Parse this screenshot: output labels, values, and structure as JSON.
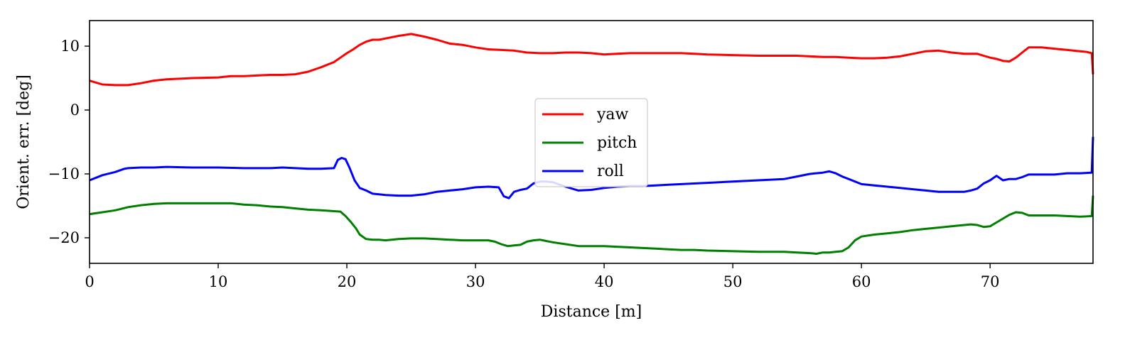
{
  "chart_data": {
    "type": "line",
    "title": "",
    "xlabel": "Distance [m]",
    "ylabel": "Orient. err. [deg]",
    "xlim": [
      0,
      78
    ],
    "ylim": [
      -24,
      14
    ],
    "xticks": [
      0,
      10,
      20,
      30,
      40,
      50,
      60,
      70
    ],
    "xtick_labels": [
      "0",
      "10",
      "20",
      "30",
      "40",
      "50",
      "60",
      "70"
    ],
    "yticks": [
      10,
      0,
      -10,
      -20
    ],
    "ytick_labels": [
      "10",
      "0",
      "−10",
      "−20"
    ],
    "grid": false,
    "legend": {
      "placement": "center"
    },
    "series": [
      {
        "name": "yaw",
        "color": "#ff0000",
        "x": [
          0,
          1,
          2,
          3,
          4,
          5,
          6,
          8,
          10,
          11,
          12,
          13,
          14,
          15,
          16,
          17,
          18,
          19,
          19.5,
          20,
          20.5,
          21,
          21.5,
          22,
          22.5,
          23,
          24,
          25,
          26,
          27,
          28,
          29,
          30,
          31,
          32,
          33,
          34,
          35,
          36,
          37,
          38,
          39,
          40,
          41,
          42,
          43,
          44,
          45,
          46,
          47,
          48,
          50,
          52,
          54,
          55,
          56,
          57,
          58,
          59,
          60,
          61,
          62,
          63,
          64,
          65,
          66,
          67,
          68,
          69,
          69.5,
          70,
          70.5,
          71,
          71.5,
          72,
          72.5,
          73,
          74,
          75,
          76,
          77,
          77.5,
          77.9,
          78
        ],
        "y": [
          4.6,
          4.0,
          3.9,
          3.9,
          4.2,
          4.6,
          4.8,
          5.0,
          5.1,
          5.3,
          5.3,
          5.4,
          5.5,
          5.5,
          5.6,
          6.0,
          6.7,
          7.5,
          8.2,
          8.9,
          9.5,
          10.2,
          10.7,
          11.0,
          11.0,
          11.2,
          11.6,
          11.9,
          11.5,
          11.0,
          10.4,
          10.2,
          9.8,
          9.5,
          9.4,
          9.3,
          9.0,
          8.9,
          8.9,
          9.0,
          9.0,
          8.9,
          8.7,
          8.8,
          8.9,
          8.9,
          8.9,
          8.9,
          8.9,
          8.8,
          8.7,
          8.6,
          8.5,
          8.5,
          8.5,
          8.4,
          8.3,
          8.3,
          8.2,
          8.1,
          8.1,
          8.2,
          8.4,
          8.8,
          9.2,
          9.3,
          9.0,
          8.8,
          8.8,
          8.5,
          8.2,
          8.0,
          7.7,
          7.6,
          8.2,
          9.0,
          9.8,
          9.8,
          9.6,
          9.4,
          9.2,
          9.1,
          8.9,
          5.6
        ]
      },
      {
        "name": "pitch",
        "color": "#008000",
        "x": [
          0,
          1,
          2,
          3,
          4,
          5,
          6,
          8,
          10,
          11,
          12,
          13,
          14,
          15,
          16,
          17,
          18,
          18.8,
          19.5,
          19.9,
          20.3,
          20.7,
          21,
          21.5,
          22,
          22.5,
          23,
          24,
          25,
          26,
          27,
          28,
          29,
          30,
          31,
          31.5,
          32,
          32.5,
          33,
          33.5,
          34,
          34.5,
          35,
          36,
          37,
          38,
          39,
          40,
          41,
          42,
          43,
          44,
          45,
          46,
          47,
          48,
          50,
          52,
          54,
          55,
          56,
          56.5,
          57,
          57.5,
          58,
          58.5,
          59,
          59.5,
          60,
          61,
          62,
          63,
          64,
          65,
          66,
          67,
          68,
          68.5,
          69,
          69.5,
          70,
          70.5,
          71,
          71.5,
          72,
          72.5,
          73,
          74,
          75,
          76,
          77,
          77.9,
          78
        ],
        "y": [
          -16.3,
          -16.0,
          -15.7,
          -15.2,
          -14.9,
          -14.7,
          -14.6,
          -14.6,
          -14.6,
          -14.6,
          -14.8,
          -14.9,
          -15.1,
          -15.2,
          -15.4,
          -15.6,
          -15.7,
          -15.8,
          -15.9,
          -16.6,
          -17.5,
          -18.5,
          -19.5,
          -20.2,
          -20.3,
          -20.3,
          -20.4,
          -20.2,
          -20.1,
          -20.1,
          -20.2,
          -20.3,
          -20.4,
          -20.4,
          -20.4,
          -20.6,
          -21.0,
          -21.3,
          -21.2,
          -21.1,
          -20.6,
          -20.4,
          -20.3,
          -20.7,
          -21.0,
          -21.3,
          -21.3,
          -21.3,
          -21.4,
          -21.5,
          -21.6,
          -21.7,
          -21.8,
          -21.9,
          -21.9,
          -22.0,
          -22.1,
          -22.2,
          -22.2,
          -22.3,
          -22.4,
          -22.5,
          -22.3,
          -22.3,
          -22.2,
          -22.1,
          -21.5,
          -20.4,
          -19.8,
          -19.5,
          -19.3,
          -19.1,
          -18.8,
          -18.6,
          -18.4,
          -18.2,
          -18.0,
          -17.9,
          -18.0,
          -18.3,
          -18.2,
          -17.6,
          -17.0,
          -16.4,
          -16.0,
          -16.1,
          -16.5,
          -16.5,
          -16.5,
          -16.6,
          -16.7,
          -16.6,
          -13.4
        ]
      },
      {
        "name": "roll",
        "color": "#0000ff",
        "x": [
          0,
          1,
          2,
          2.7,
          3,
          4,
          5,
          6,
          8,
          10,
          12,
          14,
          15,
          16,
          17,
          18,
          19,
          19.3,
          19.6,
          19.9,
          20.2,
          20.6,
          21,
          21.5,
          22,
          22.5,
          23,
          24,
          25,
          26,
          27,
          28,
          29,
          30,
          31,
          31.8,
          32.2,
          32.6,
          33,
          33.5,
          34,
          34.5,
          35,
          35.5,
          36,
          37,
          38,
          39,
          40,
          41,
          42,
          43,
          44,
          45,
          46,
          47,
          48,
          50,
          52,
          54,
          55,
          56,
          57,
          57.5,
          58,
          58.5,
          59,
          60,
          61,
          62,
          63,
          64,
          65,
          66,
          67,
          68,
          68.5,
          69,
          69.5,
          70,
          70.5,
          71,
          71.5,
          72,
          72.5,
          73,
          74,
          75,
          76,
          77,
          77.9,
          78
        ],
        "y": [
          -11.0,
          -10.2,
          -9.7,
          -9.2,
          -9.1,
          -9.0,
          -9.0,
          -8.9,
          -9.0,
          -9.0,
          -9.1,
          -9.1,
          -9.0,
          -9.1,
          -9.2,
          -9.2,
          -9.1,
          -7.8,
          -7.5,
          -7.7,
          -9.0,
          -11.0,
          -12.2,
          -12.6,
          -13.1,
          -13.2,
          -13.3,
          -13.4,
          -13.4,
          -13.2,
          -12.8,
          -12.6,
          -12.4,
          -12.1,
          -12.0,
          -12.1,
          -13.5,
          -13.8,
          -12.8,
          -12.5,
          -12.3,
          -11.5,
          -11.2,
          -11.2,
          -11.3,
          -12.0,
          -12.6,
          -12.5,
          -12.2,
          -12.0,
          -11.9,
          -11.9,
          -11.8,
          -11.7,
          -11.6,
          -11.5,
          -11.4,
          -11.2,
          -11.0,
          -10.8,
          -10.4,
          -10.0,
          -9.8,
          -9.6,
          -9.9,
          -10.4,
          -10.8,
          -11.6,
          -11.8,
          -12.0,
          -12.2,
          -12.4,
          -12.6,
          -12.8,
          -12.8,
          -12.8,
          -12.6,
          -12.3,
          -11.5,
          -11.0,
          -10.3,
          -11.0,
          -10.8,
          -10.8,
          -10.5,
          -10.1,
          -10.1,
          -10.1,
          -9.9,
          -9.9,
          -9.8,
          -4.2
        ]
      }
    ]
  }
}
